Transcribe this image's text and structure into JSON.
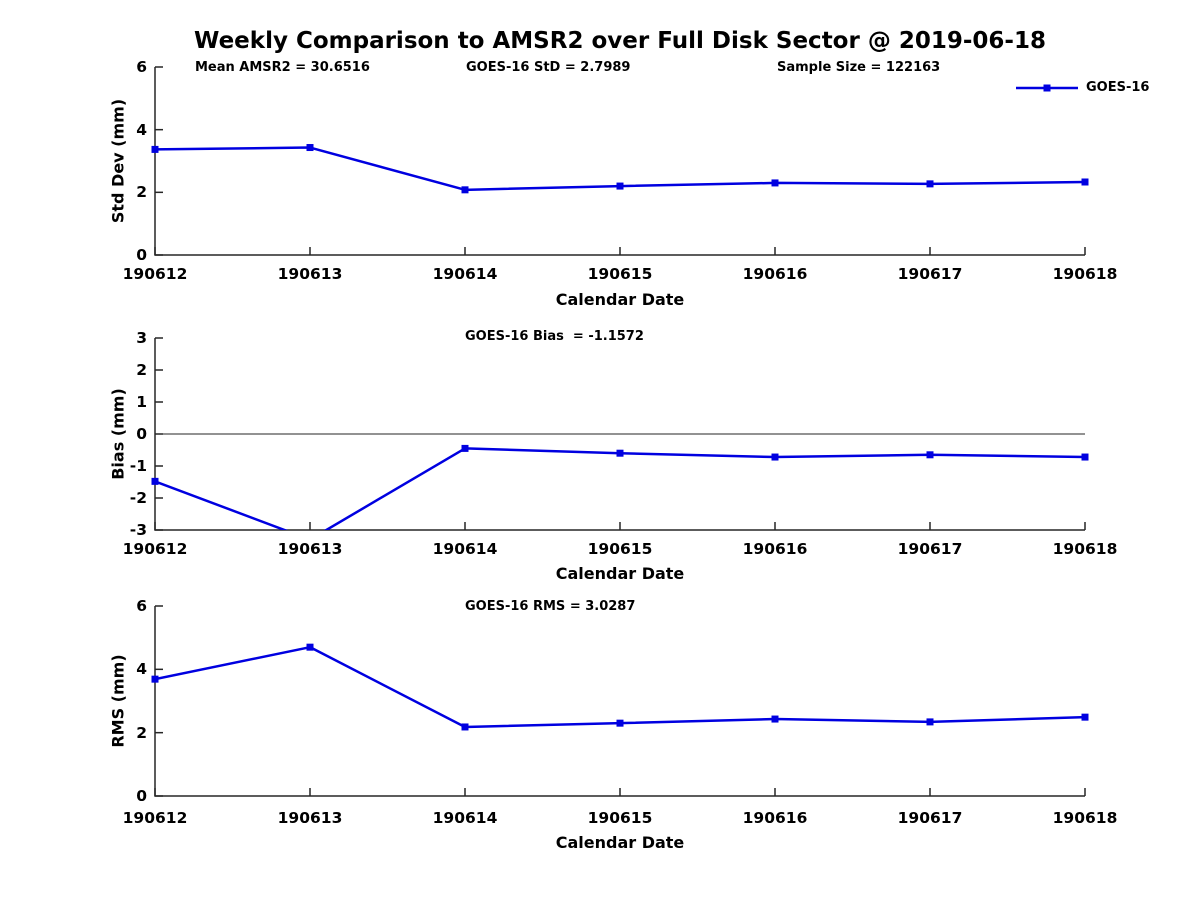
{
  "title": "Weekly Comparison to AMSR2 over Full Disk Sector @ 2019-06-18",
  "colors": {
    "line": "#0000e0",
    "axis": "#262626",
    "text": "#000000"
  },
  "legend": {
    "label": "GOES-16",
    "position": "top-right"
  },
  "chart_data": [
    {
      "type": "line",
      "marker": "square",
      "annotations": [
        "Mean AMSR2 = 30.6516",
        "GOES-16 StD = 2.7989",
        "Sample Size = 122163"
      ],
      "xlabel": "Calendar Date",
      "ylabel": "Std Dev (mm)",
      "categories": [
        "190612",
        "190613",
        "190614",
        "190615",
        "190616",
        "190617",
        "190618"
      ],
      "series": [
        {
          "name": "GOES-16",
          "values": [
            3.37,
            3.43,
            2.08,
            2.2,
            2.3,
            2.27,
            2.33
          ]
        }
      ],
      "ylim": [
        0,
        6
      ],
      "yticks": [
        0,
        2,
        4,
        6
      ],
      "zero_line": false,
      "legend_visible": true,
      "grid": false
    },
    {
      "type": "line",
      "marker": "square",
      "annotations": [
        "GOES-16 Bias  = -1.1572"
      ],
      "xlabel": "Calendar Date",
      "ylabel": "Bias (mm)",
      "categories": [
        "190612",
        "190613",
        "190614",
        "190615",
        "190616",
        "190617",
        "190618"
      ],
      "series": [
        {
          "name": "GOES-16",
          "values": [
            -1.48,
            -3.3,
            -0.45,
            -0.6,
            -0.72,
            -0.65,
            -0.72
          ]
        }
      ],
      "ylim": [
        -3,
        3
      ],
      "yticks": [
        3,
        2,
        1,
        0,
        -1,
        -2,
        -3
      ],
      "zero_line": true,
      "legend_visible": false,
      "grid": false
    },
    {
      "type": "line",
      "marker": "square",
      "annotations": [
        "GOES-16 RMS = 3.0287"
      ],
      "xlabel": "Calendar Date",
      "ylabel": "RMS (mm)",
      "categories": [
        "190612",
        "190613",
        "190614",
        "190615",
        "190616",
        "190617",
        "190618"
      ],
      "series": [
        {
          "name": "GOES-16",
          "values": [
            3.69,
            4.7,
            2.18,
            2.3,
            2.43,
            2.34,
            2.49
          ]
        }
      ],
      "ylim": [
        0,
        6
      ],
      "yticks": [
        0,
        2,
        4,
        6
      ],
      "zero_line": false,
      "legend_visible": false,
      "grid": false
    }
  ]
}
